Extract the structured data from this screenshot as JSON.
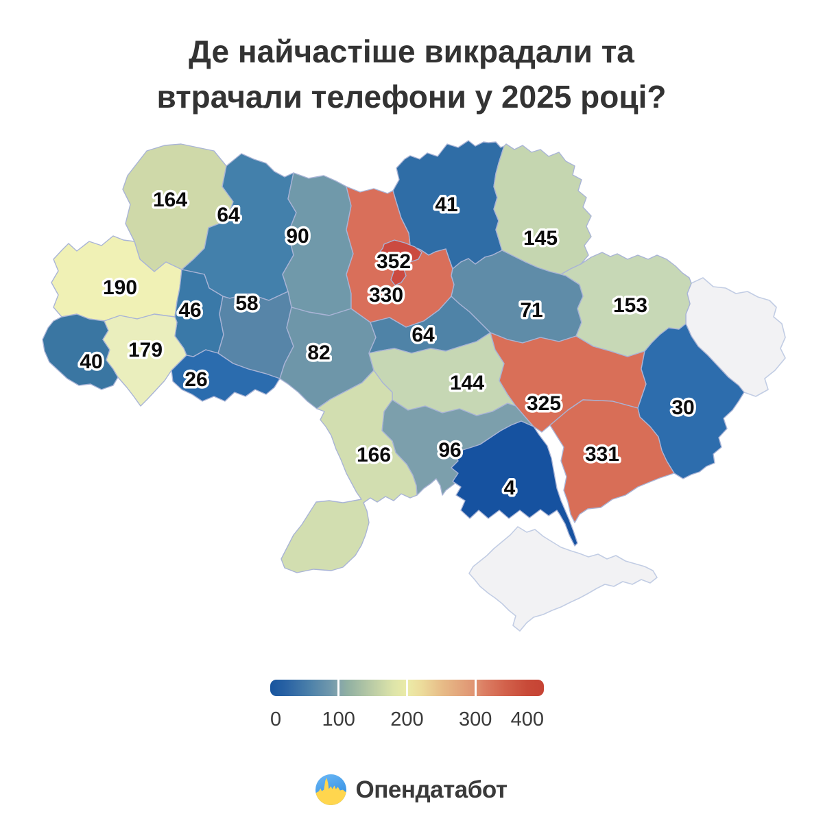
{
  "title": {
    "line1": "Де найчастіше викрадали та",
    "line2": "втрачали телефони у 2025 році?"
  },
  "chart_data": {
    "type": "heatmap",
    "subtype": "choropleth-map-of-ukraine-oblasts",
    "title": "Де найчастіше викрадали та втрачали телефони у 2025 році?",
    "legend_position": "bottom-center",
    "regions": [
      {
        "id": "luhansk",
        "value": null,
        "color": "#f2f2f4"
      },
      {
        "id": "crimea",
        "value": null,
        "color": "#f2f2f4"
      },
      {
        "id": "volyn",
        "value": 164,
        "color": "#cfd9a9"
      },
      {
        "id": "rivne",
        "value": 64,
        "color": "#4380ab"
      },
      {
        "id": "zhytomyr",
        "value": 90,
        "color": "#7099aa"
      },
      {
        "id": "chernihiv",
        "value": 41,
        "color": "#2f6da6"
      },
      {
        "id": "sumy",
        "value": 145,
        "color": "#c5d6b0"
      },
      {
        "id": "lviv",
        "value": 190,
        "color": "#f0f1b5"
      },
      {
        "id": "ternopil",
        "value": 46,
        "color": "#3a79a8"
      },
      {
        "id": "khmelnytskyi",
        "value": 58,
        "color": "#5785a8"
      },
      {
        "id": "zakarpattia",
        "value": 40,
        "color": "#3a76a2"
      },
      {
        "id": "ivano-frankivsk",
        "value": 179,
        "color": "#eaeebd"
      },
      {
        "id": "chernivtsi",
        "value": 26,
        "color": "#2b6cae"
      },
      {
        "id": "vinnytsia",
        "value": 82,
        "color": "#6e96a9"
      },
      {
        "id": "kyiv-oblast",
        "value": 330,
        "color": "#d96f5a"
      },
      {
        "id": "cherkasy",
        "value": 64,
        "color": "#4f83a7"
      },
      {
        "id": "poltava",
        "value": 71,
        "color": "#5f8ca8"
      },
      {
        "id": "kharkiv",
        "value": 153,
        "color": "#c7d8b6"
      },
      {
        "id": "kirovohrad",
        "value": 144,
        "color": "#c6d7b4"
      },
      {
        "id": "dnipro",
        "value": 325,
        "color": "#d96f58"
      },
      {
        "id": "donetsk",
        "value": 30,
        "color": "#2d6dad"
      },
      {
        "id": "zaporizhzhia",
        "value": 331,
        "color": "#d86e57"
      },
      {
        "id": "mykolaiv",
        "value": 96,
        "color": "#7c9fac"
      },
      {
        "id": "odesa",
        "value": 166,
        "color": "#d2deb0"
      },
      {
        "id": "kherson",
        "value": 4,
        "color": "#1652a0"
      },
      {
        "id": "kyiv-city",
        "value": 352,
        "color": "#cb4a40"
      }
    ],
    "colorbar": {
      "min": 0,
      "max": 400,
      "ticks": [
        "0",
        "100",
        "200",
        "300",
        "400"
      ],
      "separator_color": "#ffffff",
      "tick_color": "#3a3a3a",
      "no_data_color": "#f2f2f4",
      "gradient_stops": [
        {
          "pos": 0,
          "color": "#17549e"
        },
        {
          "pos": 6,
          "color": "#2a63a4"
        },
        {
          "pos": 14,
          "color": "#4a7fa9"
        },
        {
          "pos": 22,
          "color": "#7098ac"
        },
        {
          "pos": 25,
          "color": "#84a4ab"
        },
        {
          "pos": 28,
          "color": "#8fafa2"
        },
        {
          "pos": 36,
          "color": "#b5c8a5"
        },
        {
          "pos": 45,
          "color": "#dde4a9"
        },
        {
          "pos": 50,
          "color": "#ebeba8"
        },
        {
          "pos": 55,
          "color": "#ecdd9c"
        },
        {
          "pos": 63,
          "color": "#e7bb87"
        },
        {
          "pos": 72,
          "color": "#e19c77"
        },
        {
          "pos": 75,
          "color": "#df9271"
        },
        {
          "pos": 78,
          "color": "#dc7f64"
        },
        {
          "pos": 86,
          "color": "#d2614b"
        },
        {
          "pos": 94,
          "color": "#c84a38"
        },
        {
          "pos": 100,
          "color": "#c64334"
        }
      ]
    }
  },
  "map_style": {
    "border_color": "#a9b4d6",
    "no_data_border_color": "#c2cde4",
    "label_color": "#0b0b0b",
    "label_halo_color": "#ffffff"
  },
  "brand": {
    "name": "Опендатабот",
    "text_color": "#3a3a3a",
    "icon_blue_light": "#6cb8f5",
    "icon_blue": "#2f8ce2",
    "icon_yellow": "#ffd64e"
  }
}
